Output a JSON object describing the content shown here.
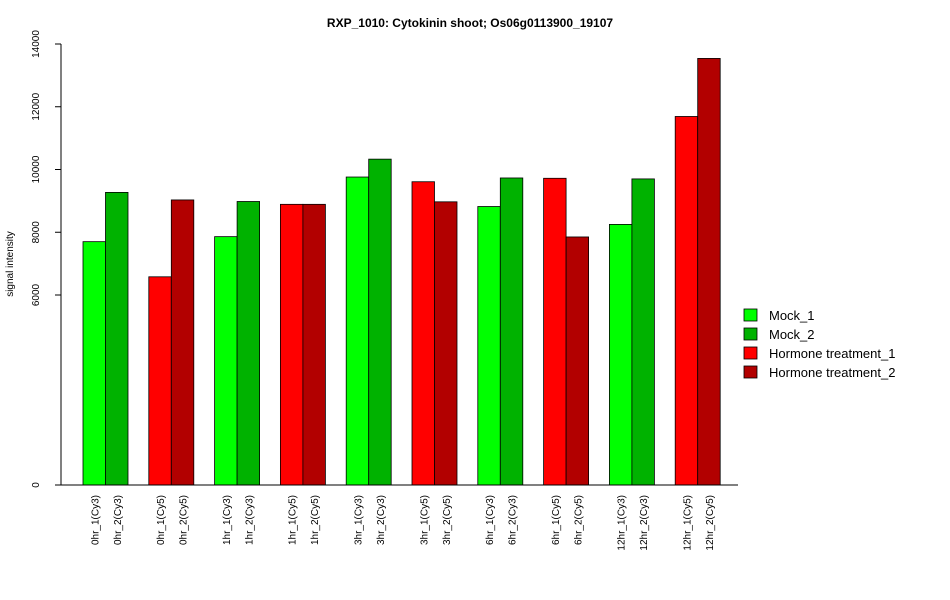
{
  "chart_data": {
    "type": "bar",
    "title": "RXP_1010: Cytokinin shoot; Os06g0113900_19107",
    "xlabel": "",
    "ylabel": "signal intensity",
    "y_ticks": [
      "0",
      "6000",
      "8000",
      "10000",
      "12000",
      "14000"
    ],
    "y_scale": "broken axis: 0 at baseline, linear from 6000 to 14000",
    "legend_position": "right",
    "categories": [
      "0hr_1(Cy3)",
      "0hr_2(Cy3)",
      "0hr_1(Cy5)",
      "0hr_2(Cy5)",
      "1hr_1(Cy3)",
      "1hr_2(Cy3)",
      "1hr_1(Cy5)",
      "1hr_2(Cy5)",
      "3hr_1(Cy3)",
      "3hr_2(Cy3)",
      "3hr_1(Cy5)",
      "3hr_2(Cy5)",
      "6hr_1(Cy3)",
      "6hr_2(Cy3)",
      "6hr_1(Cy5)",
      "6hr_2(Cy5)",
      "12hr_1(Cy3)",
      "12hr_2(Cy3)",
      "12hr_1(Cy5)",
      "12hr_2(Cy5)"
    ],
    "values": [
      7700,
      9270,
      6580,
      9030,
      7860,
      8980,
      8890,
      8890,
      9760,
      10330,
      9610,
      8970,
      8820,
      9730,
      9720,
      7850,
      8250,
      9700,
      11690,
      13540
    ],
    "bar_series_index": [
      0,
      1,
      2,
      3,
      0,
      1,
      2,
      3,
      0,
      1,
      2,
      3,
      0,
      1,
      2,
      3,
      0,
      1,
      2,
      3
    ],
    "series": [
      {
        "name": "Mock_1",
        "color": "#00ff00"
      },
      {
        "name": "Mock_2",
        "color": "#00b200"
      },
      {
        "name": "Hormone treatment_1",
        "color": "#ff0000"
      },
      {
        "name": "Hormone treatment_2",
        "color": "#b20000"
      }
    ]
  }
}
